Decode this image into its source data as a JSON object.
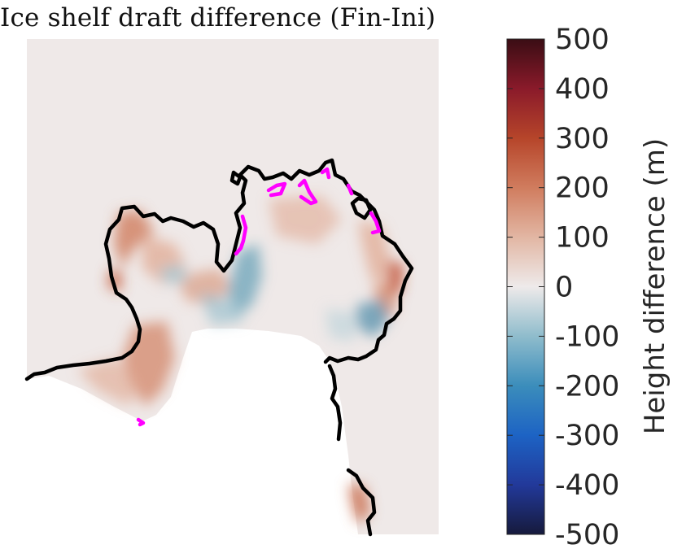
{
  "chart_data": {
    "type": "heatmap",
    "title": "Ice shelf draft difference (Fin-Ini)",
    "colorbar": {
      "label": "Height difference (m)",
      "range": [
        -500,
        500
      ],
      "ticks": [
        500,
        400,
        300,
        200,
        100,
        0,
        -100,
        -200,
        -300,
        -400,
        -500
      ],
      "tick_labels": [
        "500",
        "400",
        "300",
        "200",
        "100",
        "0",
        "-100",
        "-200",
        "-300",
        "-400",
        "-500"
      ],
      "colormap": [
        {
          "value": -500,
          "color": "#161a3c"
        },
        {
          "value": -400,
          "color": "#22399a"
        },
        {
          "value": -300,
          "color": "#1d63c4"
        },
        {
          "value": -200,
          "color": "#3b8dbb"
        },
        {
          "value": -100,
          "color": "#8fbccc"
        },
        {
          "value": 0,
          "color": "#eeeaea"
        },
        {
          "value": 100,
          "color": "#e2b6a3"
        },
        {
          "value": 200,
          "color": "#d07c5e"
        },
        {
          "value": 300,
          "color": "#b6452a"
        },
        {
          "value": 400,
          "color": "#8a1a2a"
        },
        {
          "value": 500,
          "color": "#3a0d14"
        }
      ]
    },
    "contours": [
      {
        "description": "grounding line / ice front",
        "color": "#000000"
      },
      {
        "description": "highlighted segments",
        "color": "#ff00ff"
      }
    ],
    "background_color": "#efe9e8"
  }
}
